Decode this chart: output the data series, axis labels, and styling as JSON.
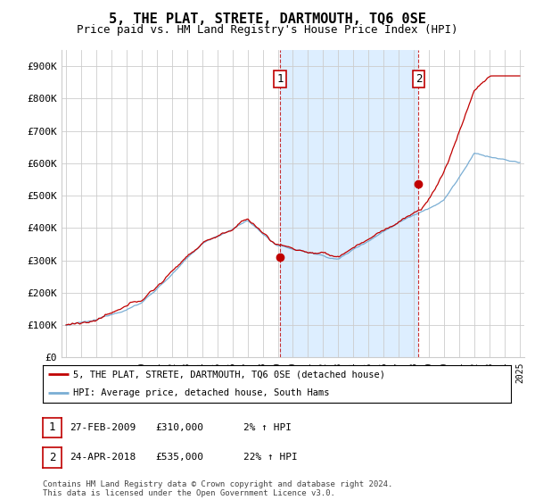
{
  "title": "5, THE PLAT, STRETE, DARTMOUTH, TQ6 0SE",
  "subtitle": "Price paid vs. HM Land Registry's House Price Index (HPI)",
  "ylabel_ticks": [
    "£0",
    "£100K",
    "£200K",
    "£300K",
    "£400K",
    "£500K",
    "£600K",
    "£700K",
    "£800K",
    "£900K"
  ],
  "ytick_values": [
    0,
    100000,
    200000,
    300000,
    400000,
    500000,
    600000,
    700000,
    800000,
    900000
  ],
  "ylim": [
    0,
    950000
  ],
  "xlim_start": 1994.7,
  "xlim_end": 2025.3,
  "hpi_color": "#7aaed4",
  "price_color": "#c00000",
  "shade_color": "#ddeeff",
  "marker_color": "#c00000",
  "sale1_date": 2009.15,
  "sale1_price": 310000,
  "sale2_date": 2018.31,
  "sale2_price": 535000,
  "sale1_label": "1",
  "sale2_label": "2",
  "legend_house_label": "5, THE PLAT, STRETE, DARTMOUTH, TQ6 0SE (detached house)",
  "legend_hpi_label": "HPI: Average price, detached house, South Hams",
  "table_row1": [
    "1",
    "27-FEB-2009",
    "£310,000",
    "2% ↑ HPI"
  ],
  "table_row2": [
    "2",
    "24-APR-2018",
    "£535,000",
    "22% ↑ HPI"
  ],
  "footer": "Contains HM Land Registry data © Crown copyright and database right 2024.\nThis data is licensed under the Open Government Licence v3.0.",
  "vline1_x": 2009.15,
  "vline2_x": 2018.31,
  "background_color": "#ffffff",
  "grid_color": "#cccccc",
  "title_fontsize": 11,
  "subtitle_fontsize": 9
}
